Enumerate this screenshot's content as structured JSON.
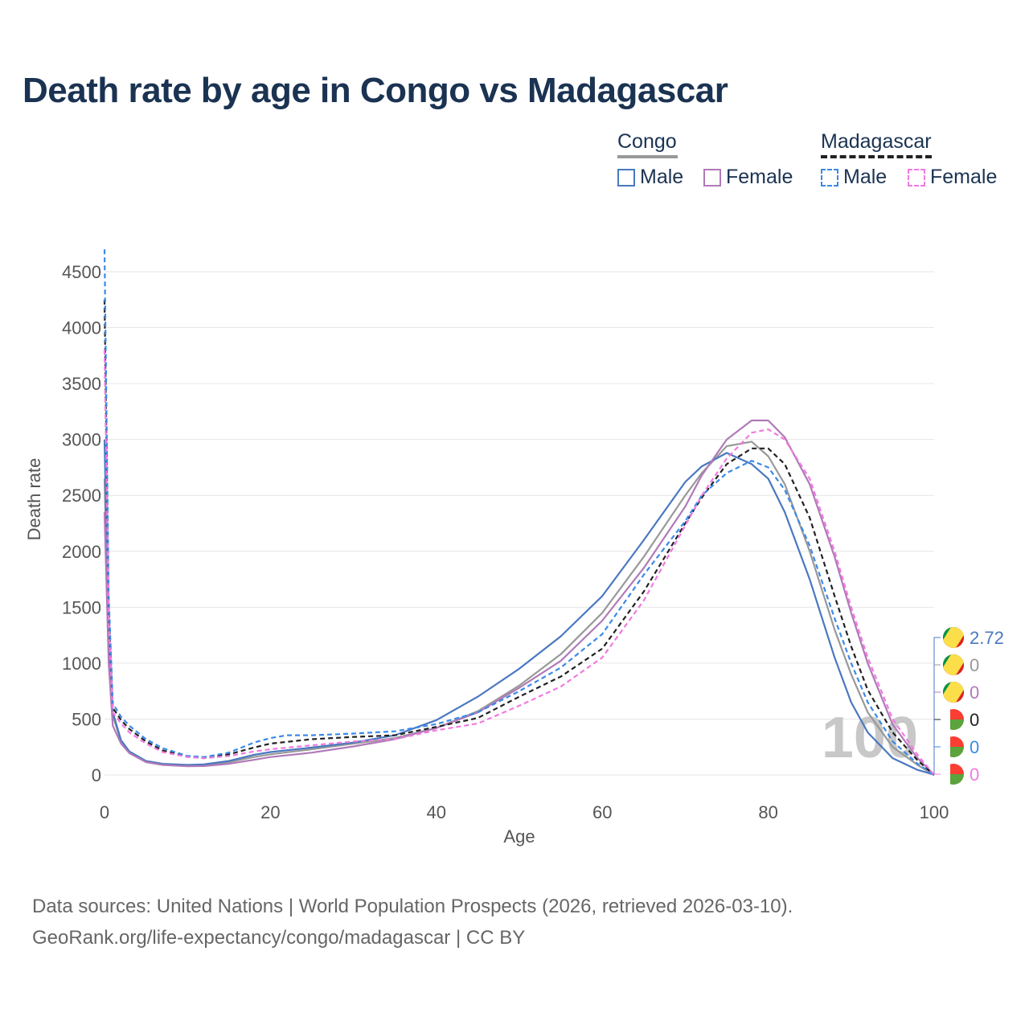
{
  "title": "Death rate by age in Congo vs Madagascar",
  "legend": {
    "groups": [
      {
        "label": "Congo",
        "line_style": "solid",
        "line_color": "#999999",
        "items": [
          {
            "label": "Male",
            "color": "#4a78c0"
          },
          {
            "label": "Female",
            "color": "#b07ab8"
          }
        ]
      },
      {
        "label": "Madagascar",
        "line_style": "dashed",
        "line_color": "#222222",
        "items": [
          {
            "label": "Male",
            "color": "#3a8ae8"
          },
          {
            "label": "Female",
            "color": "#f07ae0"
          }
        ]
      }
    ]
  },
  "watermark_age": "100",
  "end_labels": [
    {
      "country": "Congo",
      "series": "Male",
      "value": "2.72",
      "color": "#4a78c0"
    },
    {
      "country": "Congo",
      "series": "Total",
      "value": "0",
      "color": "#999999"
    },
    {
      "country": "Congo",
      "series": "Female",
      "value": "0",
      "color": "#b07ab8"
    },
    {
      "country": "Madagascar",
      "series": "Total",
      "value": "0",
      "color": "#222222"
    },
    {
      "country": "Madagascar",
      "series": "Male",
      "value": "0",
      "color": "#3a8ae8"
    },
    {
      "country": "Madagascar",
      "series": "Female",
      "value": "0",
      "color": "#f07ae0"
    }
  ],
  "source_line1": "Data sources: United Nations | World Population Prospects (2026, retrieved 2026-03-10).",
  "source_line2": "GeoRank.org/life-expectancy/congo/madagascar | CC BY",
  "chart_data": {
    "type": "line",
    "title": "Death rate by age in Congo vs Madagascar",
    "xlabel": "Age",
    "ylabel": "Death rate",
    "xlim": [
      0,
      100
    ],
    "ylim": [
      0,
      4700
    ],
    "xticks": [
      0,
      20,
      40,
      60,
      80,
      100
    ],
    "yticks": [
      0,
      500,
      1000,
      1500,
      2000,
      2500,
      3000,
      3500,
      4000,
      4500
    ],
    "grid": true,
    "series": [
      {
        "name": "Congo Total",
        "color": "#999999",
        "dash": false,
        "x": [
          0,
          0.5,
          1,
          2,
          3,
          5,
          7,
          10,
          12,
          15,
          18,
          20,
          25,
          30,
          35,
          40,
          45,
          50,
          55,
          60,
          65,
          70,
          72,
          75,
          78,
          80,
          82,
          85,
          88,
          90,
          92,
          95,
          98,
          100
        ],
        "y": [
          2650,
          1100,
          530,
          300,
          200,
          120,
          95,
          85,
          90,
          115,
          160,
          185,
          230,
          280,
          330,
          420,
          570,
          800,
          1080,
          1450,
          1950,
          2500,
          2700,
          2940,
          2980,
          2850,
          2600,
          2000,
          1300,
          900,
          560,
          250,
          90,
          0
        ]
      },
      {
        "name": "Congo Male",
        "color": "#4a78c0",
        "dash": false,
        "x": [
          0,
          0.5,
          1,
          2,
          3,
          5,
          7,
          10,
          12,
          15,
          18,
          20,
          25,
          30,
          35,
          40,
          45,
          50,
          55,
          60,
          65,
          70,
          72,
          75,
          78,
          80,
          82,
          85,
          88,
          90,
          92,
          95,
          98,
          100
        ],
        "y": [
          3000,
          1200,
          560,
          310,
          210,
          125,
          100,
          90,
          95,
          125,
          180,
          205,
          245,
          290,
          355,
          490,
          700,
          950,
          1240,
          1600,
          2100,
          2620,
          2760,
          2880,
          2780,
          2650,
          2350,
          1750,
          1050,
          650,
          380,
          150,
          45,
          3
        ]
      },
      {
        "name": "Congo Female",
        "color": "#b07ab8",
        "dash": false,
        "x": [
          0,
          0.5,
          1,
          2,
          3,
          5,
          7,
          10,
          12,
          15,
          18,
          20,
          25,
          30,
          35,
          40,
          45,
          50,
          55,
          60,
          65,
          70,
          72,
          75,
          78,
          80,
          82,
          85,
          88,
          90,
          92,
          95,
          98,
          100
        ],
        "y": [
          2350,
          1000,
          440,
          280,
          195,
          115,
          90,
          78,
          80,
          100,
          135,
          160,
          200,
          255,
          320,
          420,
          560,
          780,
          1020,
          1380,
          1850,
          2400,
          2680,
          3000,
          3170,
          3170,
          3020,
          2600,
          1950,
          1450,
          1000,
          450,
          150,
          0
        ]
      },
      {
        "name": "Madagascar Total",
        "color": "#222222",
        "dash": true,
        "x": [
          0,
          0.5,
          1,
          2,
          3,
          5,
          7,
          10,
          12,
          15,
          18,
          20,
          25,
          30,
          35,
          40,
          45,
          50,
          55,
          60,
          65,
          70,
          72,
          75,
          78,
          80,
          82,
          85,
          88,
          90,
          92,
          95,
          98,
          100
        ],
        "y": [
          4250,
          1500,
          600,
          490,
          410,
          300,
          220,
          165,
          150,
          185,
          245,
          280,
          320,
          340,
          355,
          430,
          510,
          700,
          880,
          1130,
          1640,
          2250,
          2480,
          2780,
          2920,
          2920,
          2780,
          2300,
          1600,
          1150,
          760,
          380,
          130,
          0
        ]
      },
      {
        "name": "Madagascar Male",
        "color": "#3a8ae8",
        "dash": true,
        "x": [
          0,
          0.5,
          1,
          2,
          3,
          5,
          7,
          10,
          12,
          15,
          18,
          20,
          22,
          25,
          30,
          35,
          40,
          45,
          50,
          55,
          60,
          65,
          70,
          72,
          75,
          78,
          80,
          82,
          85,
          88,
          90,
          92,
          95,
          98,
          100
        ],
        "y": [
          4700,
          1600,
          640,
          520,
          440,
          320,
          240,
          170,
          160,
          200,
          290,
          330,
          355,
          355,
          370,
          390,
          455,
          560,
          750,
          960,
          1260,
          1790,
          2270,
          2500,
          2700,
          2810,
          2750,
          2550,
          2050,
          1400,
          1000,
          650,
          300,
          100,
          0
        ]
      },
      {
        "name": "Madagascar Female",
        "color": "#f07ae0",
        "dash": true,
        "x": [
          0,
          0.5,
          1,
          2,
          3,
          5,
          7,
          10,
          12,
          15,
          18,
          20,
          25,
          30,
          35,
          40,
          45,
          50,
          55,
          60,
          65,
          70,
          72,
          75,
          78,
          80,
          82,
          85,
          88,
          90,
          92,
          95,
          98,
          100
        ],
        "y": [
          3800,
          1400,
          560,
          460,
          380,
          280,
          205,
          160,
          150,
          170,
          210,
          230,
          265,
          300,
          320,
          400,
          460,
          620,
          790,
          1050,
          1560,
          2230,
          2500,
          2830,
          3060,
          3090,
          3000,
          2650,
          2000,
          1500,
          1050,
          500,
          180,
          0
        ]
      }
    ]
  }
}
